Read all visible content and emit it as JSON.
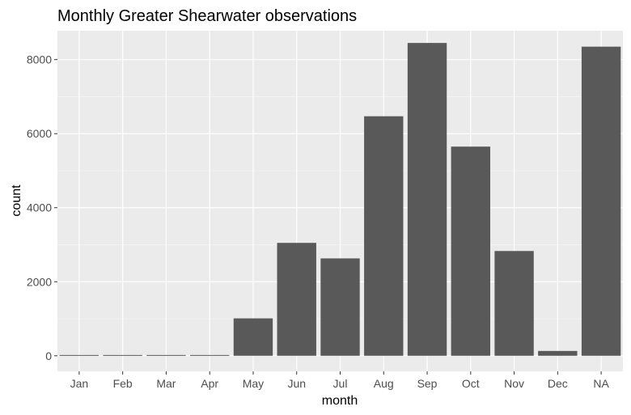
{
  "chart_data": {
    "type": "bar",
    "title": "Monthly Greater Shearwater observations",
    "xlabel": "month",
    "ylabel": "count",
    "categories": [
      "Jan",
      "Feb",
      "Mar",
      "Apr",
      "May",
      "Jun",
      "Jul",
      "Aug",
      "Sep",
      "Oct",
      "Nov",
      "Dec",
      "NA"
    ],
    "values": [
      20,
      20,
      20,
      20,
      1010,
      3050,
      2630,
      6470,
      8450,
      5650,
      2830,
      130,
      8350
    ],
    "ylim": [
      -420,
      8780
    ],
    "yticks": [
      0,
      2000,
      4000,
      6000,
      8000
    ],
    "ytick_labels": [
      "0",
      "2000",
      "4000",
      "6000",
      "8000"
    ],
    "grid": true,
    "legend": "none",
    "colors": {
      "bar": "#595959",
      "panel": "#ebebeb",
      "grid_major": "#ffffff",
      "grid_minor": "#f5f5f5",
      "tick_text": "#4d4d4d"
    }
  }
}
